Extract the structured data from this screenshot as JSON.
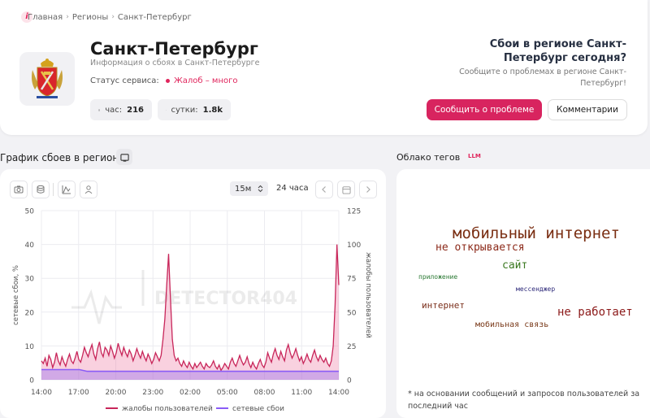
{
  "breadcrumb": {
    "home": "Главная",
    "regions": "Регионы",
    "current": "Санкт-Петербург",
    "sep": "›"
  },
  "header": {
    "title": "Санкт-Петербург",
    "subtitle": "Информация о сбоях в Санкт-Петербурге",
    "status_label": "Статус сервиса:",
    "status_value": "Жалоб – много",
    "stats": [
      {
        "label": "час:",
        "value": "216",
        "icon": "clock-icon"
      },
      {
        "label": "сутки:",
        "value": "1.8k",
        "icon": "calendar-icon"
      }
    ],
    "right_title": "Сбои в регионе Санкт-Петербург сегодня?",
    "right_sub": "Сообщите о проблемах в регионе Санкт-Петербург!",
    "report_button": "Сообщить о проблеме",
    "comments_button": "Комментарии",
    "accent": "#d8245f"
  },
  "chart_section": {
    "heading": "График сбоев в регионе",
    "interval_select": "15м",
    "range_label": "24 часа",
    "watermark": "DETECTOR404"
  },
  "chart_data": {
    "type": "line",
    "x_ticks": [
      "14:00",
      "17:00",
      "20:00",
      "23:00",
      "02:00",
      "05:00",
      "08:00",
      "11:00",
      "14:00"
    ],
    "y_left": {
      "label": "сетевые сбои, %",
      "ticks": [
        0,
        10,
        20,
        30,
        40,
        50
      ],
      "lim": [
        0,
        50
      ]
    },
    "y_right": {
      "label": "жалобы пользователей",
      "ticks": [
        0,
        25,
        50,
        75,
        100,
        125
      ],
      "lim": [
        0,
        125
      ]
    },
    "grid": true,
    "legend_position": "bottom",
    "series": [
      {
        "name": "жалобы пользователей",
        "axis": "right",
        "color": "#c8265a",
        "values": [
          14,
          12,
          16,
          10,
          18,
          15,
          9,
          13,
          20,
          14,
          11,
          17,
          13,
          10,
          15,
          19,
          14,
          12,
          16,
          21,
          15,
          13,
          18,
          24,
          20,
          17,
          22,
          26,
          19,
          15,
          23,
          28,
          20,
          17,
          24,
          22,
          18,
          25,
          21,
          16,
          20,
          27,
          22,
          18,
          24,
          20,
          17,
          22,
          19,
          14,
          18,
          23,
          19,
          16,
          21,
          17,
          14,
          19,
          16,
          12,
          15,
          20,
          17,
          14,
          18,
          30,
          45,
          70,
          93,
          60,
          30,
          18,
          14,
          16,
          12,
          10,
          14,
          11,
          9,
          13,
          10,
          8,
          12,
          9,
          11,
          13,
          10,
          8,
          12,
          10,
          9,
          11,
          14,
          10,
          8,
          11,
          7,
          9,
          12,
          10,
          8,
          13,
          16,
          12,
          10,
          14,
          18,
          14,
          11,
          13,
          17,
          12,
          9,
          13,
          10,
          8,
          12,
          15,
          11,
          9,
          13,
          20,
          16,
          13,
          19,
          23,
          18,
          15,
          21,
          17,
          14,
          22,
          26,
          20,
          16,
          19,
          23,
          18,
          14,
          17,
          12,
          15,
          19,
          15,
          13,
          18,
          22,
          17,
          14,
          18,
          15,
          13,
          16,
          12,
          10,
          14,
          25,
          55,
          100,
          70
        ]
      },
      {
        "name": "сетевые сбои",
        "axis": "left",
        "color": "#8a5cf6",
        "values": [
          3,
          3,
          3,
          3,
          3,
          3,
          2.5,
          2.5,
          2.5,
          2.5,
          2.5,
          2.5,
          2.5,
          2.5,
          2.5,
          2.5,
          2.5,
          2.5,
          2.5,
          2.5,
          2.5,
          2.5,
          2.5,
          2.5,
          2.5,
          2.5,
          2.5,
          2.5,
          2.5,
          2.5,
          2.5,
          2.5,
          2.5,
          2.5,
          2.5,
          2.5,
          2.5,
          2.5,
          2.5,
          2.5
        ]
      }
    ]
  },
  "tags_section": {
    "heading": "Облако тегов",
    "badge": "LLM",
    "tags": [
      {
        "text": "мобильный интернет",
        "color": "#7a2e12"
      },
      {
        "text": "не открывается",
        "color": "#8c2a1a"
      },
      {
        "text": "сайт",
        "color": "#3c7a22"
      },
      {
        "text": "приложение",
        "color": "#2c7a35"
      },
      {
        "text": "мессенджер",
        "color": "#2e2a7a"
      },
      {
        "text": "интернет",
        "color": "#7a2e1a"
      },
      {
        "text": "не работает",
        "color": "#8c1a1a"
      },
      {
        "text": "мобильная связь",
        "color": "#7a3a1a"
      }
    ],
    "footnote": "* на основании сообщений и запросов пользователей за последний час"
  }
}
